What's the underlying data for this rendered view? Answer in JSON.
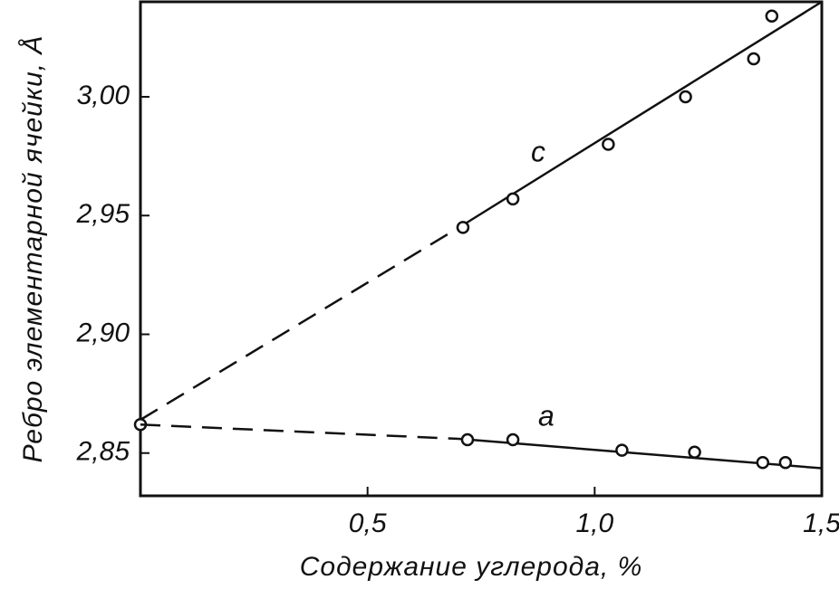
{
  "chart_data": {
    "type": "scatter",
    "xlabel": "Содержание углерода, %",
    "ylabel": "Ребро элементарной ячейки, Å",
    "xlim": [
      0,
      1.5
    ],
    "ylim": [
      2.832,
      3.04
    ],
    "xticks": [
      {
        "value": 0.5,
        "label": "0,5"
      },
      {
        "value": 1.0,
        "label": "1,0"
      },
      {
        "value": 1.5,
        "label": "1,5"
      }
    ],
    "yticks": [
      {
        "value": 2.85,
        "label": "2,85"
      },
      {
        "value": 2.9,
        "label": "2,90"
      },
      {
        "value": 2.95,
        "label": "2,95"
      },
      {
        "value": 3.0,
        "label": "3,00"
      }
    ],
    "color": "#111111",
    "series": [
      {
        "name": "c",
        "x": [
          0,
          0.71,
          0.82,
          1.03,
          1.2,
          1.35,
          1.39
        ],
        "values": [
          2.862,
          2.945,
          2.957,
          2.98,
          3.0,
          3.016,
          3.034
        ],
        "fit_x": [
          0,
          0.71,
          1.5
        ],
        "fit_y": [
          2.864,
          2.946,
          3.04
        ],
        "fit_style": [
          "dashed",
          "solid"
        ]
      },
      {
        "name": "a",
        "x": [
          0.72,
          0.82,
          1.06,
          1.22,
          1.37,
          1.42
        ],
        "values": [
          2.8556,
          2.8556,
          2.8512,
          2.8504,
          2.846,
          2.846
        ],
        "fit_x": [
          0,
          0.7,
          1.5
        ],
        "fit_y": [
          2.862,
          2.856,
          2.8436
        ],
        "fit_style": [
          "dashed",
          "solid"
        ]
      }
    ]
  }
}
